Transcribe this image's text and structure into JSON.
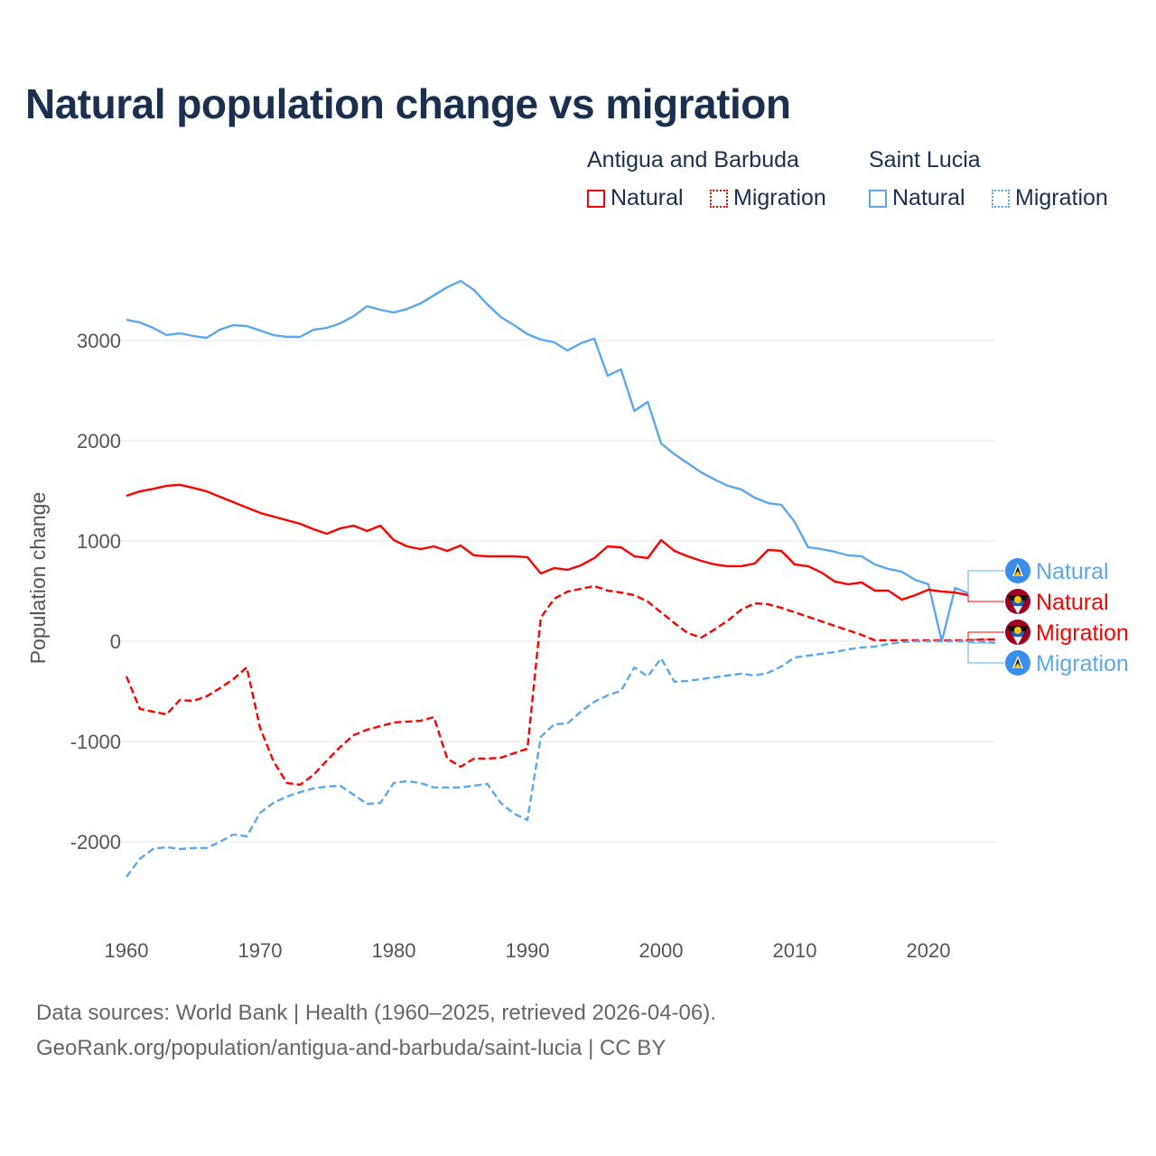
{
  "title": "Natural population change vs migration",
  "legend": {
    "groups": [
      {
        "name": "Antigua and Barbuda",
        "color": "#ff0000",
        "items": [
          "Natural",
          "Migration"
        ]
      },
      {
        "name": "Saint Lucia",
        "color": "#5ca8ea",
        "items": [
          "Natural",
          "Migration"
        ]
      }
    ]
  },
  "footer": {
    "line1": "Data sources: World Bank | Health (1960–2025, retrieved 2026-04-06).",
    "line2": "GeoRank.org/population/antigua-and-barbuda/saint-lucia | CC BY"
  },
  "chart_data": {
    "type": "line",
    "title": "Natural population change vs migration",
    "xlabel": "",
    "ylabel": "Population change",
    "xlim": [
      1960,
      2025
    ],
    "ylim": [
      -2600,
      3700
    ],
    "xticks": [
      1960,
      1970,
      1980,
      1990,
      2000,
      2010,
      2020
    ],
    "yticks": [
      -2000,
      -1000,
      0,
      1000,
      2000,
      3000
    ],
    "grid": true,
    "series": [
      {
        "name": "Saint Lucia Natural",
        "label": "Natural",
        "country": "Saint Lucia",
        "color": "#5ca8ea",
        "dashed": false,
        "start": 1960,
        "values": [
          3207,
          3180,
          3126,
          3054,
          3072,
          3045,
          3027,
          3108,
          3153,
          3144,
          3099,
          3054,
          3036,
          3036,
          3108,
          3126,
          3171,
          3243,
          3342,
          3306,
          3279,
          3315,
          3369,
          3450,
          3531,
          3594,
          3504,
          3360,
          3234,
          3153,
          3063,
          3009,
          2982,
          2900,
          2973,
          3018,
          2649,
          2712,
          2297,
          2387,
          1973,
          1865,
          1775,
          1685,
          1613,
          1550,
          1514,
          1432,
          1378,
          1360,
          1189,
          937,
          919,
          892,
          856,
          847,
          766,
          721,
          694,
          613,
          568,
          0,
          532,
          477
        ]
      },
      {
        "name": "Antigua and Barbuda Natural",
        "label": "Natural",
        "country": "Antigua and Barbuda",
        "color": "#ff0000",
        "dashed": false,
        "start": 1960,
        "values": [
          1450,
          1495,
          1520,
          1550,
          1560,
          1530,
          1495,
          1440,
          1387,
          1333,
          1280,
          1243,
          1207,
          1171,
          1117,
          1072,
          1126,
          1153,
          1099,
          1153,
          1009,
          946,
          919,
          946,
          901,
          955,
          856,
          847,
          847,
          847,
          838,
          676,
          730,
          712,
          757,
          829,
          946,
          937,
          847,
          829,
          1009,
          901,
          847,
          802,
          766,
          748,
          748,
          775,
          910,
          901,
          766,
          748,
          685,
          595,
          568,
          586,
          505,
          505,
          414,
          459,
          514,
          495,
          486,
          459
        ]
      },
      {
        "name": "Antigua and Barbuda Migration",
        "label": "Migration",
        "country": "Antigua and Barbuda",
        "color": "#ff0000",
        "dashed": true,
        "start": 1960,
        "values": [
          -351,
          -675,
          -703,
          -730,
          -586,
          -595,
          -550,
          -468,
          -378,
          -261,
          -865,
          -1198,
          -1414,
          -1432,
          -1333,
          -1189,
          -1054,
          -937,
          -883,
          -847,
          -811,
          -802,
          -793,
          -757,
          -1171,
          -1252,
          -1171,
          -1171,
          -1162,
          -1117,
          -1072,
          234,
          423,
          495,
          523,
          550,
          505,
          486,
          459,
          396,
          288,
          180,
          81,
          36,
          117,
          207,
          315,
          378,
          369,
          333,
          288,
          243,
          198,
          153,
          108,
          63,
          9,
          9,
          9,
          9,
          9,
          9,
          9,
          9,
          18,
          18
        ]
      },
      {
        "name": "Saint Lucia Migration",
        "label": "Migration",
        "country": "Saint Lucia",
        "color": "#5ca8ea",
        "dashed": true,
        "start": 1960,
        "values": [
          -2351,
          -2171,
          -2072,
          -2054,
          -2072,
          -2063,
          -2063,
          -2000,
          -1928,
          -1946,
          -1712,
          -1613,
          -1550,
          -1505,
          -1468,
          -1450,
          -1441,
          -1532,
          -1622,
          -1613,
          -1414,
          -1396,
          -1414,
          -1459,
          -1459,
          -1459,
          -1441,
          -1423,
          -1613,
          -1721,
          -1784,
          -955,
          -829,
          -820,
          -703,
          -604,
          -541,
          -495,
          -261,
          -351,
          -171,
          -405,
          -396,
          -378,
          -360,
          -342,
          -324,
          -342,
          -315,
          -252,
          -162,
          -144,
          -126,
          -108,
          -81,
          -63,
          -54,
          -27,
          -9,
          0,
          0,
          0,
          0,
          0,
          0,
          -18
        ]
      }
    ]
  }
}
